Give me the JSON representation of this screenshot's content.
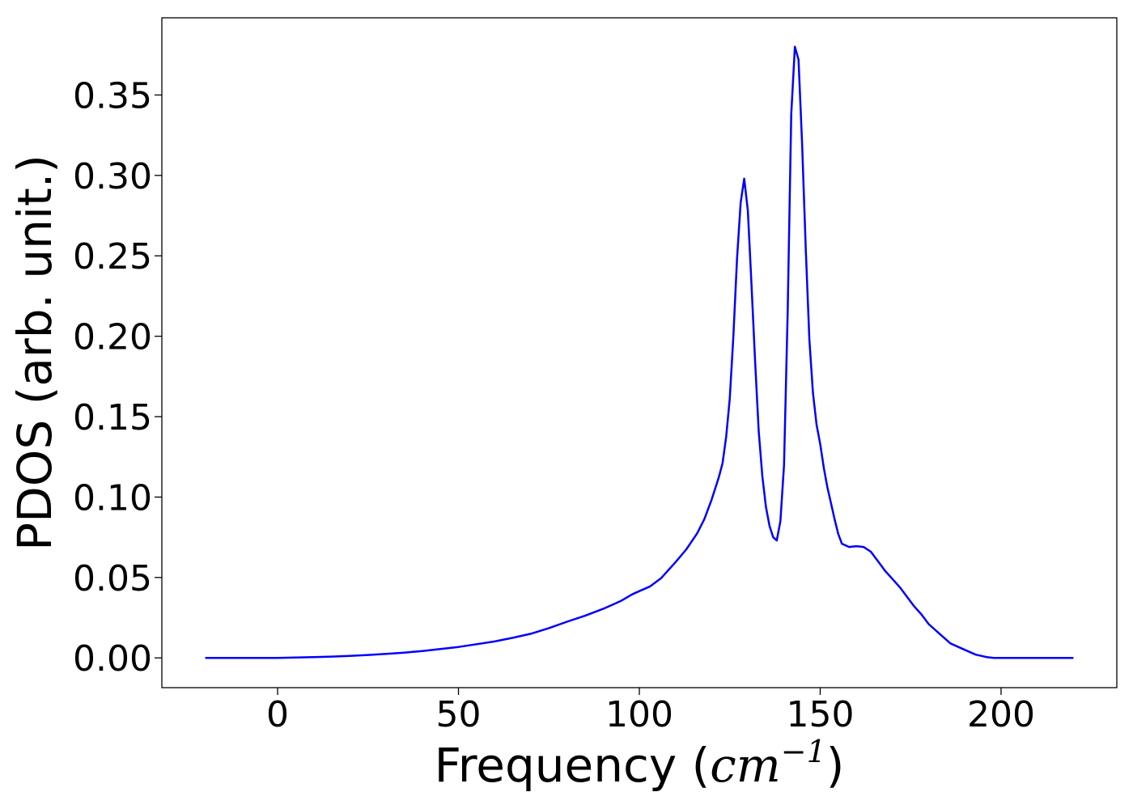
{
  "chart_data": {
    "type": "line",
    "title": "",
    "xlabel": "Frequency",
    "xlabel_unit": {
      "open": "(",
      "base": "cm",
      "exponent": "−1",
      "close": ")"
    },
    "ylabel": "PDOS (arb. unit.)",
    "xlim": [
      -32,
      232
    ],
    "ylim": [
      -0.0185,
      0.398
    ],
    "xticks": [
      0,
      50,
      100,
      150,
      200
    ],
    "xtick_labels": [
      "0",
      "50",
      "100",
      "150",
      "200"
    ],
    "yticks": [
      0.0,
      0.05,
      0.1,
      0.15,
      0.2,
      0.25,
      0.3,
      0.35
    ],
    "ytick_labels": [
      "0.00",
      "0.05",
      "0.10",
      "0.15",
      "0.20",
      "0.25",
      "0.30",
      "0.35"
    ],
    "grid": false,
    "legend": false,
    "line_color": "#0000ff",
    "series": [
      {
        "x": [
          -20,
          -10,
          0,
          5,
          10,
          15,
          20,
          25,
          30,
          35,
          40,
          45,
          50,
          55,
          60,
          65,
          70,
          75,
          80,
          85,
          90,
          95,
          98,
          100,
          103,
          106,
          110,
          113,
          116,
          118,
          120,
          122,
          123,
          124,
          125,
          126,
          127,
          128,
          129,
          130,
          131,
          132,
          133,
          134,
          135,
          136,
          137,
          138,
          139,
          140,
          141,
          142,
          143,
          144,
          145,
          146,
          147,
          148,
          149,
          150,
          151,
          152,
          153,
          154,
          155,
          156,
          158,
          160,
          162,
          164,
          166,
          168,
          170,
          172,
          174,
          176,
          178,
          180,
          183,
          186,
          190,
          193,
          196,
          198,
          200,
          202,
          204,
          206,
          210,
          215,
          220
        ],
        "y": [
          0.0,
          0.0,
          0.0,
          0.0002,
          0.0005,
          0.0008,
          0.0012,
          0.0018,
          0.0025,
          0.0033,
          0.0043,
          0.0055,
          0.0068,
          0.0085,
          0.0102,
          0.0125,
          0.015,
          0.0185,
          0.0225,
          0.0262,
          0.0305,
          0.0355,
          0.0395,
          0.0415,
          0.0445,
          0.0495,
          0.0595,
          0.0675,
          0.0775,
          0.0865,
          0.0985,
          0.1125,
          0.121,
          0.1375,
          0.161,
          0.2,
          0.248,
          0.283,
          0.298,
          0.278,
          0.232,
          0.185,
          0.141,
          0.113,
          0.094,
          0.082,
          0.075,
          0.073,
          0.085,
          0.12,
          0.215,
          0.338,
          0.38,
          0.372,
          0.32,
          0.255,
          0.198,
          0.165,
          0.145,
          0.133,
          0.118,
          0.106,
          0.096,
          0.086,
          0.077,
          0.071,
          0.069,
          0.0695,
          0.069,
          0.066,
          0.06,
          0.054,
          0.049,
          0.044,
          0.038,
          0.032,
          0.027,
          0.021,
          0.015,
          0.009,
          0.005,
          0.002,
          0.0005,
          0.0,
          0.0,
          0.0,
          0.0,
          0.0,
          0.0,
          0.0,
          0.0
        ]
      }
    ]
  }
}
